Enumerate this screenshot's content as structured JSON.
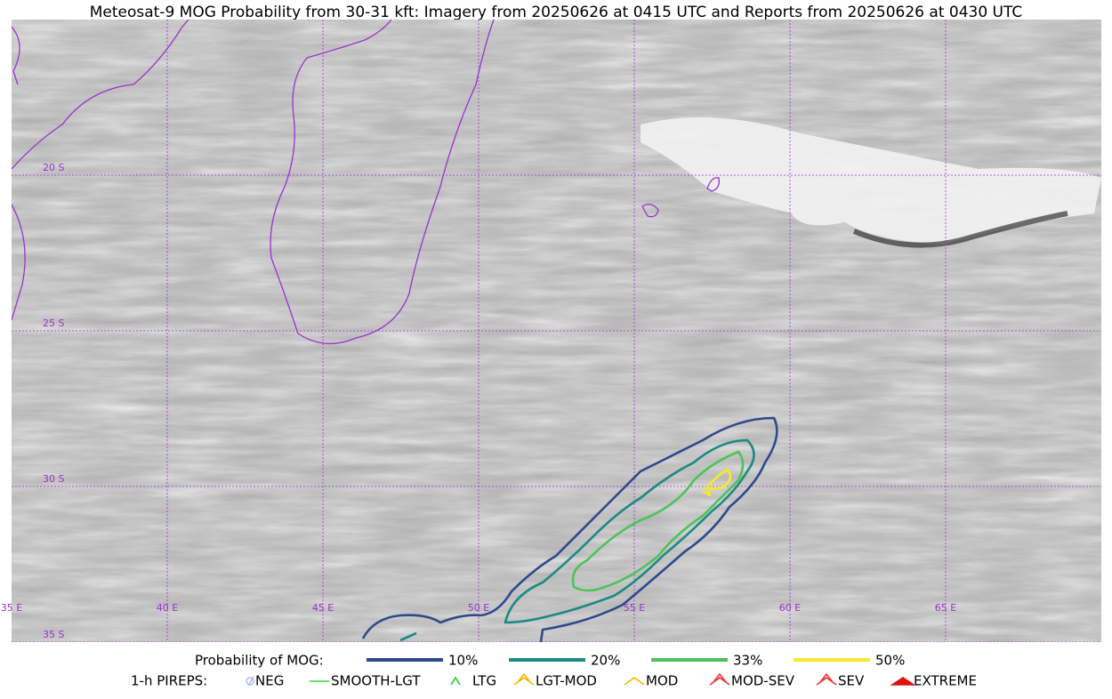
{
  "title": "Meteosat-9 MOG Probability from 30-31 kft: Imagery from 20250626 at 0415 UTC and Reports from 20250626 at 0430 UTC",
  "map": {
    "lat_labels": [
      "20 S",
      "25 S",
      "30 S",
      "35 S"
    ],
    "lon_labels": [
      "35 E",
      "40 E",
      "45 E",
      "50 E",
      "55 E",
      "60 E",
      "65 E"
    ]
  },
  "legend": {
    "mog_title": "Probability of MOG:",
    "mog_items": [
      {
        "label": "10%",
        "color": "#2e4a8b"
      },
      {
        "label": "20%",
        "color": "#1c8a82"
      },
      {
        "label": "33%",
        "color": "#4cc35a"
      },
      {
        "label": "50%",
        "color": "#fde725"
      }
    ],
    "pirep_title": "1-h PIREPS:",
    "pirep_items": [
      {
        "label": "NEG",
        "color": "#b8b8f0"
      },
      {
        "label": "SMOOTH-LGT",
        "color": "#33dd33"
      },
      {
        "label": "LTG",
        "color": "#22cc22"
      },
      {
        "label": "LGT-MOD",
        "color": "#f5b800"
      },
      {
        "label": "MOD",
        "color": "#f5b800"
      },
      {
        "label": "MOD-SEV",
        "color": "#ee3333"
      },
      {
        "label": "SEV",
        "color": "#ee3333"
      },
      {
        "label": "EXTREME",
        "color": "#dd1111"
      }
    ]
  }
}
